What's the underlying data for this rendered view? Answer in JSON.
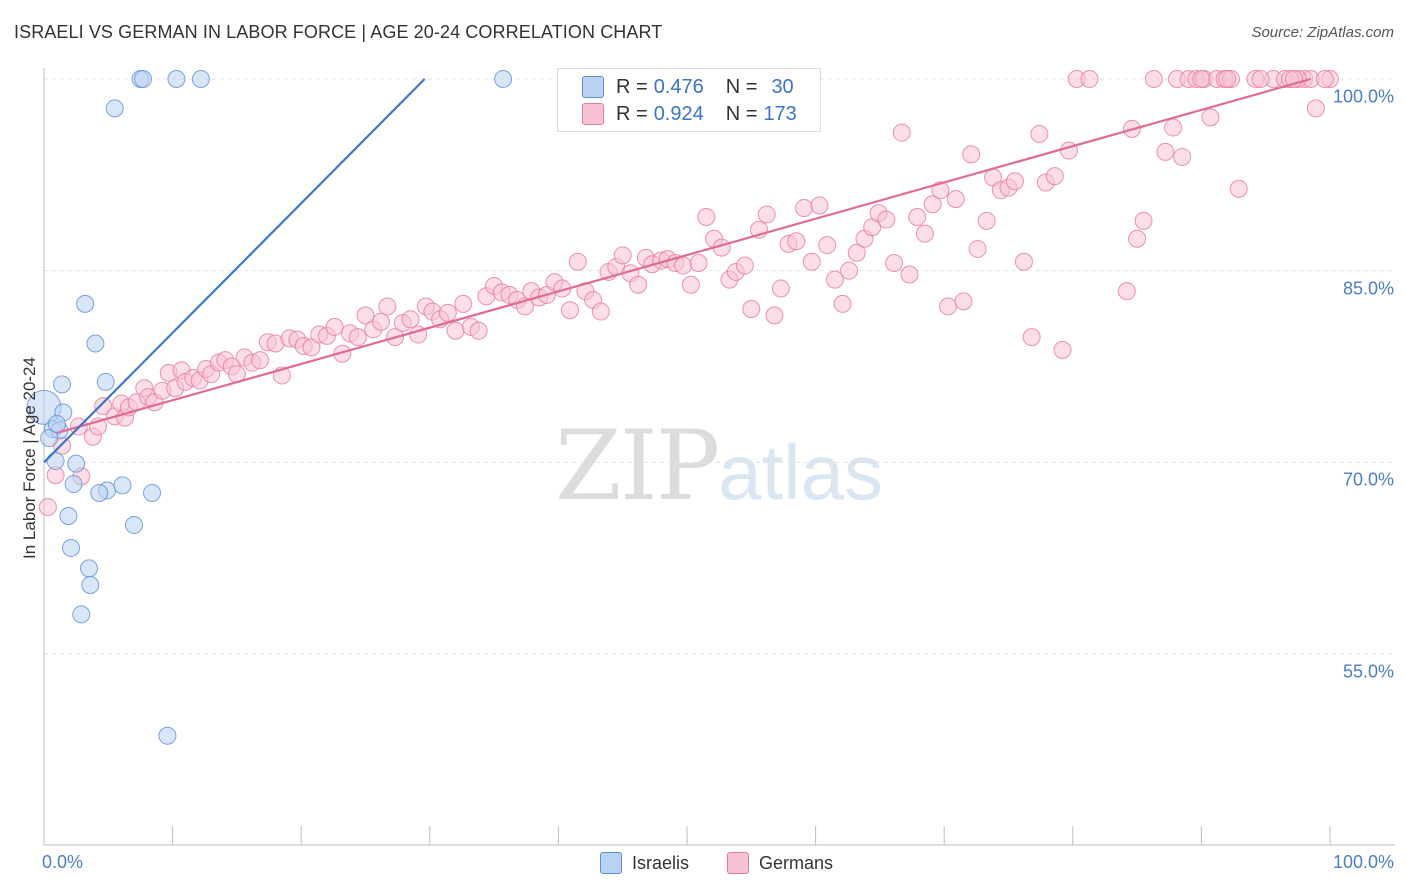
{
  "header": {
    "title": "ISRAELI VS GERMAN IN LABOR FORCE | AGE 20-24 CORRELATION CHART",
    "source": "Source: ZipAtlas.com"
  },
  "watermark": {
    "zip": "ZIP",
    "atlas": "atlas"
  },
  "colors": {
    "israelis": "#5b8fd6",
    "germans": "#e8789f",
    "israelis_fill": "#b9d2f2",
    "germans_fill": "#f7c3d4",
    "tick_label": "#4a7fc8"
  },
  "legend": {
    "rows": [
      {
        "r_label": "R = ",
        "r_value": "0.476",
        "n_label": "N = ",
        "n_value": "30"
      },
      {
        "r_label": "R = ",
        "r_value": "0.924",
        "n_label": "N = ",
        "n_value": "173"
      }
    ]
  },
  "bottom_legend": {
    "israelis": "Israelis",
    "germans": "Germans"
  },
  "chart_data": {
    "type": "scatter",
    "title": "ISRAELI VS GERMAN IN LABOR FORCE | AGE 20-24 CORRELATION CHART",
    "xlabel": "",
    "ylabel": "In Labor Force | Age 20-24",
    "xlim": [
      0,
      100
    ],
    "ylim": [
      40,
      101.5
    ],
    "x_tick_labels": [
      "0.0%",
      "100.0%"
    ],
    "y_ticks": [
      55,
      70,
      85,
      100
    ],
    "y_tick_labels": [
      "55.0%",
      "70.0%",
      "85.0%",
      "100.0%"
    ],
    "grid": true,
    "series": [
      {
        "name": "Israelis",
        "r": 0.476,
        "n": 30,
        "trend": {
          "x": [
            0.0,
            29.6
          ],
          "y": [
            70.0,
            100.0
          ]
        },
        "points": [
          [
            7.5,
            100
          ],
          [
            7.7,
            100
          ],
          [
            10.3,
            100
          ],
          [
            12.2,
            100
          ],
          [
            35.7,
            100
          ],
          [
            5.5,
            97.7
          ],
          [
            3.2,
            82.4
          ],
          [
            4.0,
            79.3
          ],
          [
            1.4,
            76.1
          ],
          [
            4.8,
            76.3
          ],
          [
            0.0,
            74.3
          ],
          [
            1.5,
            73.9
          ],
          [
            0.7,
            72.6
          ],
          [
            1.2,
            72.5
          ],
          [
            0.9,
            70.1
          ],
          [
            2.5,
            69.9
          ],
          [
            2.3,
            68.3
          ],
          [
            4.9,
            67.8
          ],
          [
            4.3,
            67.6
          ],
          [
            6.1,
            68.2
          ],
          [
            8.4,
            67.6
          ],
          [
            1.9,
            65.8
          ],
          [
            7.0,
            65.1
          ],
          [
            2.1,
            63.3
          ],
          [
            3.5,
            61.7
          ],
          [
            3.6,
            60.4
          ],
          [
            2.9,
            58.1
          ],
          [
            9.6,
            48.6
          ],
          [
            0.4,
            71.9
          ],
          [
            1.0,
            73.0
          ]
        ]
      },
      {
        "name": "Germans",
        "r": 0.924,
        "n": 173,
        "trend": {
          "x": [
            1.0,
            98.5
          ],
          "y": [
            72.3,
            100.0
          ]
        },
        "points": [
          [
            0.3,
            66.5
          ],
          [
            0.9,
            69.0
          ],
          [
            1.4,
            71.3
          ],
          [
            2.9,
            68.9
          ],
          [
            2.7,
            72.8
          ],
          [
            3.8,
            72.0
          ],
          [
            4.2,
            72.8
          ],
          [
            4.6,
            74.4
          ],
          [
            5.5,
            73.6
          ],
          [
            6.0,
            74.6
          ],
          [
            6.3,
            73.5
          ],
          [
            6.6,
            74.3
          ],
          [
            7.2,
            74.7
          ],
          [
            7.8,
            75.8
          ],
          [
            8.1,
            75.1
          ],
          [
            8.6,
            74.7
          ],
          [
            9.2,
            75.6
          ],
          [
            9.7,
            77.0
          ],
          [
            10.2,
            75.8
          ],
          [
            10.7,
            77.2
          ],
          [
            11.0,
            76.3
          ],
          [
            11.6,
            76.6
          ],
          [
            12.1,
            76.4
          ],
          [
            12.6,
            77.3
          ],
          [
            13.0,
            76.9
          ],
          [
            13.6,
            77.8
          ],
          [
            14.1,
            78.0
          ],
          [
            14.6,
            77.5
          ],
          [
            15.0,
            76.9
          ],
          [
            15.6,
            78.2
          ],
          [
            16.2,
            77.8
          ],
          [
            16.8,
            78.0
          ],
          [
            17.4,
            79.4
          ],
          [
            18.0,
            79.3
          ],
          [
            18.5,
            76.8
          ],
          [
            19.1,
            79.7
          ],
          [
            19.7,
            79.6
          ],
          [
            20.2,
            79.1
          ],
          [
            20.8,
            79.0
          ],
          [
            21.4,
            80.0
          ],
          [
            22.0,
            79.9
          ],
          [
            22.6,
            80.6
          ],
          [
            23.2,
            78.5
          ],
          [
            23.8,
            80.1
          ],
          [
            24.4,
            79.8
          ],
          [
            25.0,
            81.5
          ],
          [
            25.6,
            80.4
          ],
          [
            26.2,
            81.0
          ],
          [
            26.7,
            82.2
          ],
          [
            27.3,
            79.8
          ],
          [
            27.9,
            80.9
          ],
          [
            28.5,
            81.2
          ],
          [
            29.1,
            80.0
          ],
          [
            29.7,
            82.2
          ],
          [
            30.2,
            81.8
          ],
          [
            30.8,
            81.2
          ],
          [
            31.4,
            81.7
          ],
          [
            32.0,
            80.3
          ],
          [
            32.6,
            82.4
          ],
          [
            33.2,
            80.6
          ],
          [
            33.8,
            80.3
          ],
          [
            34.4,
            83.0
          ],
          [
            35.0,
            83.8
          ],
          [
            35.6,
            83.3
          ],
          [
            36.2,
            83.1
          ],
          [
            36.8,
            82.7
          ],
          [
            37.4,
            82.2
          ],
          [
            37.9,
            83.4
          ],
          [
            38.5,
            82.9
          ],
          [
            39.1,
            83.1
          ],
          [
            39.7,
            84.1
          ],
          [
            40.3,
            83.6
          ],
          [
            40.9,
            81.9
          ],
          [
            41.5,
            85.7
          ],
          [
            42.1,
            83.4
          ],
          [
            42.7,
            82.7
          ],
          [
            43.3,
            81.8
          ],
          [
            43.9,
            84.9
          ],
          [
            44.5,
            85.3
          ],
          [
            45.0,
            86.2
          ],
          [
            45.6,
            84.8
          ],
          [
            46.2,
            83.9
          ],
          [
            46.8,
            86.0
          ],
          [
            47.3,
            85.5
          ],
          [
            48.0,
            85.8
          ],
          [
            48.5,
            85.9
          ],
          [
            49.1,
            85.6
          ],
          [
            49.7,
            85.4
          ],
          [
            50.3,
            83.9
          ],
          [
            50.9,
            85.6
          ],
          [
            51.5,
            89.2
          ],
          [
            52.1,
            87.5
          ],
          [
            52.7,
            86.8
          ],
          [
            53.3,
            84.3
          ],
          [
            53.8,
            84.9
          ],
          [
            54.5,
            85.4
          ],
          [
            55.0,
            82.0
          ],
          [
            55.6,
            88.2
          ],
          [
            56.2,
            89.4
          ],
          [
            56.8,
            81.5
          ],
          [
            57.3,
            83.6
          ],
          [
            57.9,
            87.1
          ],
          [
            58.5,
            87.3
          ],
          [
            59.1,
            89.9
          ],
          [
            59.7,
            85.7
          ],
          [
            60.3,
            90.1
          ],
          [
            60.9,
            87.0
          ],
          [
            61.5,
            84.3
          ],
          [
            62.1,
            82.4
          ],
          [
            62.6,
            85.0
          ],
          [
            63.2,
            86.4
          ],
          [
            63.8,
            87.5
          ],
          [
            64.4,
            88.4
          ],
          [
            64.9,
            89.5
          ],
          [
            65.5,
            89.0
          ],
          [
            66.1,
            85.6
          ],
          [
            66.7,
            95.8
          ],
          [
            67.3,
            84.7
          ],
          [
            67.9,
            89.2
          ],
          [
            68.5,
            87.9
          ],
          [
            69.1,
            90.2
          ],
          [
            69.7,
            91.3
          ],
          [
            70.3,
            82.2
          ],
          [
            70.9,
            90.6
          ],
          [
            71.5,
            82.6
          ],
          [
            72.1,
            94.1
          ],
          [
            72.6,
            86.7
          ],
          [
            73.3,
            88.9
          ],
          [
            73.8,
            92.3
          ],
          [
            74.4,
            91.3
          ],
          [
            75.0,
            91.5
          ],
          [
            75.5,
            92.0
          ],
          [
            76.2,
            85.7
          ],
          [
            76.8,
            79.8
          ],
          [
            77.4,
            95.7
          ],
          [
            77.9,
            91.9
          ],
          [
            78.6,
            92.4
          ],
          [
            79.2,
            78.8
          ],
          [
            79.7,
            94.4
          ],
          [
            80.3,
            100
          ],
          [
            81.3,
            100
          ],
          [
            84.2,
            83.4
          ],
          [
            84.6,
            96.1
          ],
          [
            85.0,
            87.5
          ],
          [
            85.5,
            88.9
          ],
          [
            86.3,
            100
          ],
          [
            87.2,
            94.3
          ],
          [
            87.8,
            96.2
          ],
          [
            88.1,
            100
          ],
          [
            88.5,
            93.9
          ],
          [
            89.0,
            100
          ],
          [
            89.6,
            100
          ],
          [
            90.2,
            100
          ],
          [
            90.7,
            97.0
          ],
          [
            91.2,
            100
          ],
          [
            91.8,
            100
          ],
          [
            92.3,
            100
          ],
          [
            92.9,
            91.4
          ],
          [
            94.2,
            100
          ],
          [
            95.6,
            100
          ],
          [
            96.5,
            100
          ],
          [
            98.0,
            100
          ],
          [
            98.5,
            100
          ],
          [
            98.9,
            97.7
          ],
          [
            100.0,
            100
          ],
          [
            99.6,
            100
          ],
          [
            97.5,
            100
          ],
          [
            96.9,
            100
          ],
          [
            94.6,
            100
          ],
          [
            92.0,
            100
          ],
          [
            90.0,
            100
          ],
          [
            97.2,
            100
          ]
        ]
      }
    ]
  }
}
